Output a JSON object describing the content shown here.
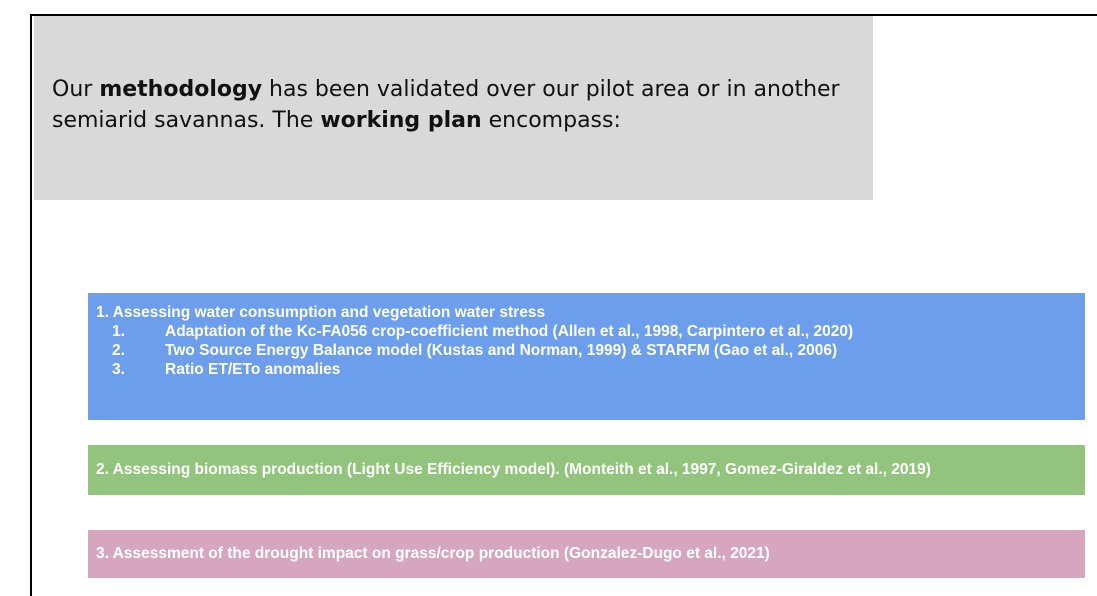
{
  "intro": {
    "segments": [
      {
        "text": "Our ",
        "bold": false
      },
      {
        "text": "methodology",
        "bold": true
      },
      {
        "text": " has been validated over our pilot area or in another semiarid savannas. The ",
        "bold": false
      },
      {
        "text": "working plan",
        "bold": true
      },
      {
        "text": " encompass:",
        "bold": false
      }
    ]
  },
  "boxes": [
    {
      "heading": "1. Assessing water consumption and vegetation water stress",
      "items": [
        {
          "number": "1.",
          "text": "Adaptation of the Kc-FA056 crop-coefficient method (Allen et al., 1998, Carpintero et al., 2020)"
        },
        {
          "number": "2.",
          "text": "Two Source Energy Balance model (Kustas and Norman, 1999) & STARFM (Gao et al., 2006)"
        },
        {
          "number": "3.",
          "text": "Ratio ET/ETo anomalies"
        }
      ]
    },
    {
      "heading": "2. Assessing biomass production (Light Use Efficiency model). (Monteith et al., 1997, Gomez-Giraldez et al., 2019)"
    },
    {
      "heading": "3. Assessment of the drought impact on grass/crop production (Gonzalez-Dugo et al., 2021)"
    }
  ]
}
